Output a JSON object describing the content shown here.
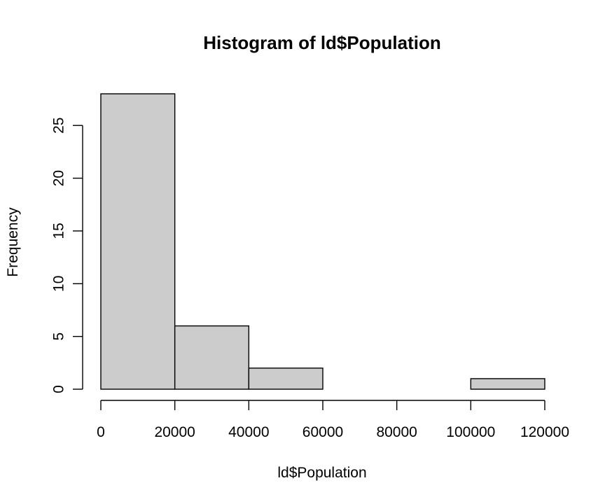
{
  "chart_data": {
    "type": "bar",
    "title": "Histogram of ld$Population",
    "xlabel": "ld$Population",
    "ylabel": "Frequency",
    "bins": [
      {
        "start": 0,
        "end": 20000,
        "count": 28
      },
      {
        "start": 20000,
        "end": 40000,
        "count": 6
      },
      {
        "start": 40000,
        "end": 60000,
        "count": 2
      },
      {
        "start": 60000,
        "end": 80000,
        "count": 0
      },
      {
        "start": 80000,
        "end": 100000,
        "count": 0
      },
      {
        "start": 100000,
        "end": 120000,
        "count": 1
      }
    ],
    "xticks": [
      0,
      20000,
      40000,
      60000,
      80000,
      100000,
      120000
    ],
    "yticks": [
      0,
      5,
      10,
      15,
      20,
      25
    ],
    "xlim": [
      0,
      120000
    ],
    "ylim": [
      0,
      28
    ],
    "bar_color": "#cccccc",
    "grid": false
  }
}
